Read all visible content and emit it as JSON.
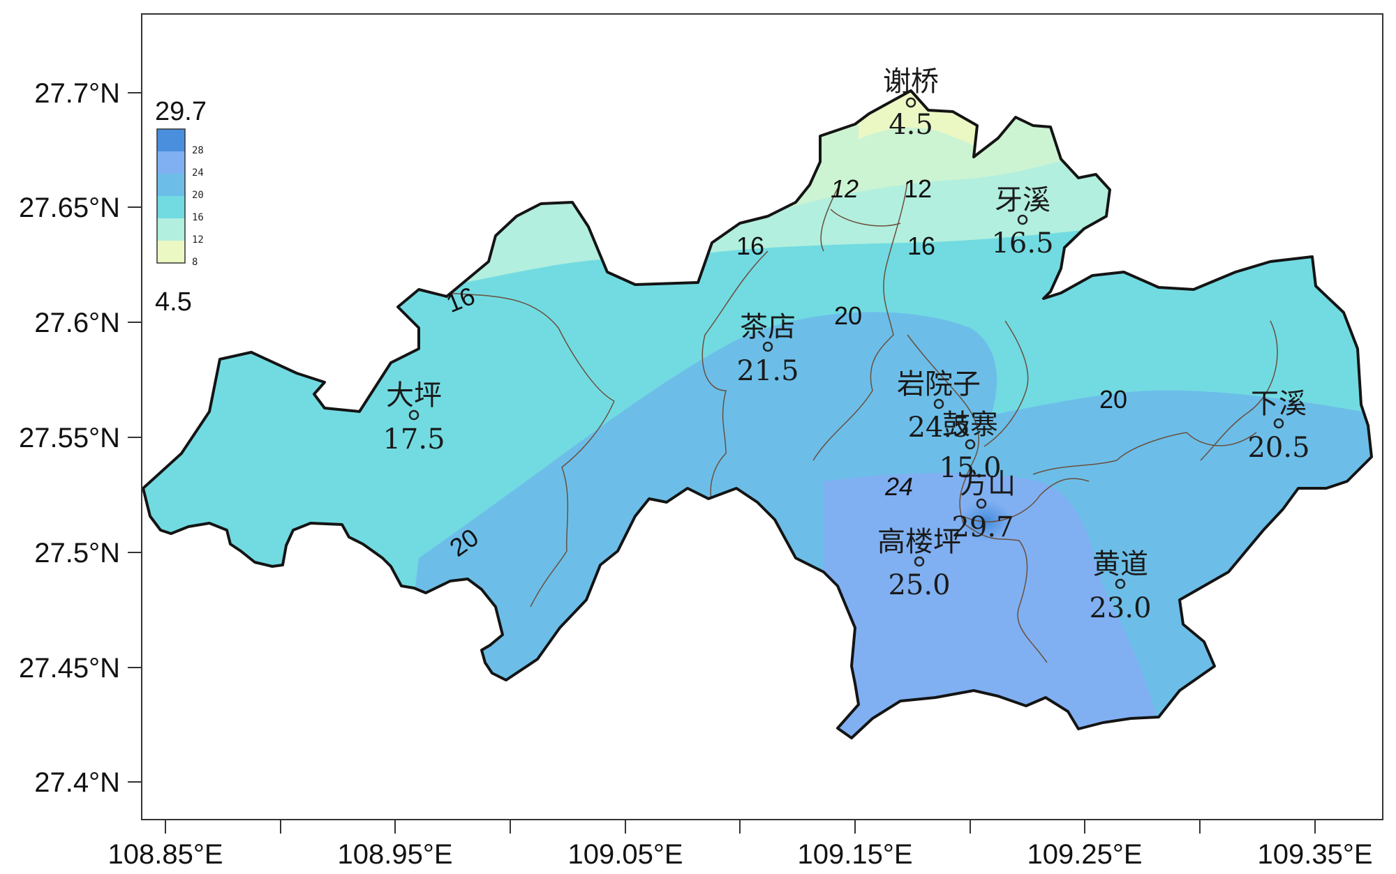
{
  "axes": {
    "x_ticks": [
      "108.85°E",
      "108.95°E",
      "109.05°E",
      "109.15°E",
      "109.25°E",
      "109.35°E"
    ],
    "y_ticks": [
      "27.7°N",
      "27.65°N",
      "27.6°N",
      "27.55°N",
      "27.5°N",
      "27.45°N",
      "27.4°N"
    ]
  },
  "legend": {
    "max_label": "29.7",
    "min_label": "4.5",
    "levels": [
      "28",
      "24",
      "20",
      "16",
      "12",
      "8"
    ],
    "level_values": [
      28,
      24,
      20,
      16,
      12,
      8
    ],
    "colors": [
      "#4a8fdd",
      "#80b0f2",
      "#6cbee8",
      "#72dbe2",
      "#b2efde",
      "#ecf8c4"
    ]
  },
  "stations": [
    {
      "name": "谢桥",
      "value": "4.5"
    },
    {
      "name": "牙溪",
      "value": "16.5"
    },
    {
      "name": "茶店",
      "value": "21.5"
    },
    {
      "name": "大坪",
      "value": "17.5"
    },
    {
      "name": "岩院子",
      "value": "24.5"
    },
    {
      "name": "鼓寨",
      "value": "15.0"
    },
    {
      "name": "方山",
      "value": "29.7"
    },
    {
      "name": "高楼坪",
      "value": "25.0"
    },
    {
      "name": "黄道",
      "value": "23.0"
    },
    {
      "name": "下溪",
      "value": "20.5"
    }
  ],
  "contour_labels": [
    "12",
    "12",
    "16",
    "16",
    "16",
    "20",
    "20",
    "20",
    "24"
  ],
  "colors": {
    "boundary": "#141414",
    "internal_boundary": "#6a4e3c",
    "frame": "#333333"
  }
}
